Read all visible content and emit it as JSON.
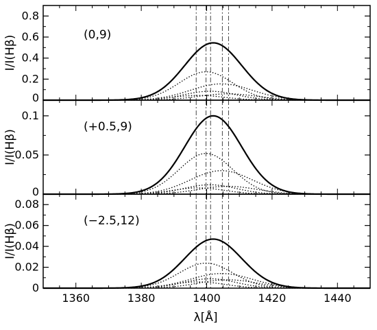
{
  "chart_data": {
    "type": "line",
    "xlabel": "λ[Å]",
    "ylabel": "I/I(Hβ)",
    "xlim": [
      1350,
      1450
    ],
    "x_ticks": [
      1360,
      1380,
      1400,
      1420,
      1440
    ],
    "vlines": [
      1396.8,
      1399.8,
      1401.2,
      1404.8,
      1406.7
    ],
    "panels": [
      {
        "label": "(0,9)",
        "ylim": [
          0,
          0.9
        ],
        "y_ticks": [
          0,
          0.2,
          0.4,
          0.6,
          0.8
        ],
        "y_tick_labels": [
          "0",
          "0.2",
          "0.4",
          "0.6",
          "0.8"
        ],
        "series": [
          {
            "style": "solid",
            "center": 1402.0,
            "width": 8.7,
            "peak": 0.545
          },
          {
            "style": "dotted",
            "center": 1399.8,
            "width": 8.2,
            "peak": 0.27
          },
          {
            "style": "dotted",
            "center": 1404.5,
            "width": 9.5,
            "peak": 0.155
          },
          {
            "style": "dotted",
            "center": 1401.0,
            "width": 8.0,
            "peak": 0.085
          },
          {
            "style": "dotted",
            "center": 1406.5,
            "width": 9.0,
            "peak": 0.06
          },
          {
            "style": "dotted",
            "center": 1397.5,
            "width": 8.0,
            "peak": 0.045
          }
        ]
      },
      {
        "label": "(+0.5,9)",
        "ylim": [
          0,
          0.12
        ],
        "y_ticks": [
          0,
          0.05,
          0.1
        ],
        "y_tick_labels": [
          "0",
          "0.05",
          "0.1"
        ],
        "top_label": "0.1",
        "series": [
          {
            "style": "solid",
            "center": 1402.0,
            "width": 8.7,
            "peak": 0.1
          },
          {
            "style": "dotted",
            "center": 1399.8,
            "width": 8.2,
            "peak": 0.052
          },
          {
            "style": "dotted",
            "center": 1404.5,
            "width": 9.5,
            "peak": 0.03
          },
          {
            "style": "dotted",
            "center": 1401.0,
            "width": 8.0,
            "peak": 0.012
          },
          {
            "style": "dotted",
            "center": 1406.5,
            "width": 9.0,
            "peak": 0.01
          },
          {
            "style": "dotted",
            "center": 1397.5,
            "width": 8.0,
            "peak": 0.008
          }
        ]
      },
      {
        "label": "(−2.5,12)",
        "ylim": [
          0,
          0.09
        ],
        "y_ticks": [
          0,
          0.02,
          0.04,
          0.06,
          0.08
        ],
        "y_tick_labels": [
          "0",
          "0.02",
          "0.04",
          "0.06",
          "0.08"
        ],
        "series": [
          {
            "style": "solid",
            "center": 1402.0,
            "width": 8.7,
            "peak": 0.047
          },
          {
            "style": "dotted",
            "center": 1399.8,
            "width": 8.2,
            "peak": 0.024
          },
          {
            "style": "dotted",
            "center": 1404.5,
            "width": 9.5,
            "peak": 0.014
          },
          {
            "style": "dotted",
            "center": 1401.0,
            "width": 8.0,
            "peak": 0.009
          },
          {
            "style": "dotted",
            "center": 1406.5,
            "width": 9.0,
            "peak": 0.008
          },
          {
            "style": "dotted",
            "center": 1397.5,
            "width": 8.0,
            "peak": 0.006
          }
        ]
      }
    ]
  }
}
